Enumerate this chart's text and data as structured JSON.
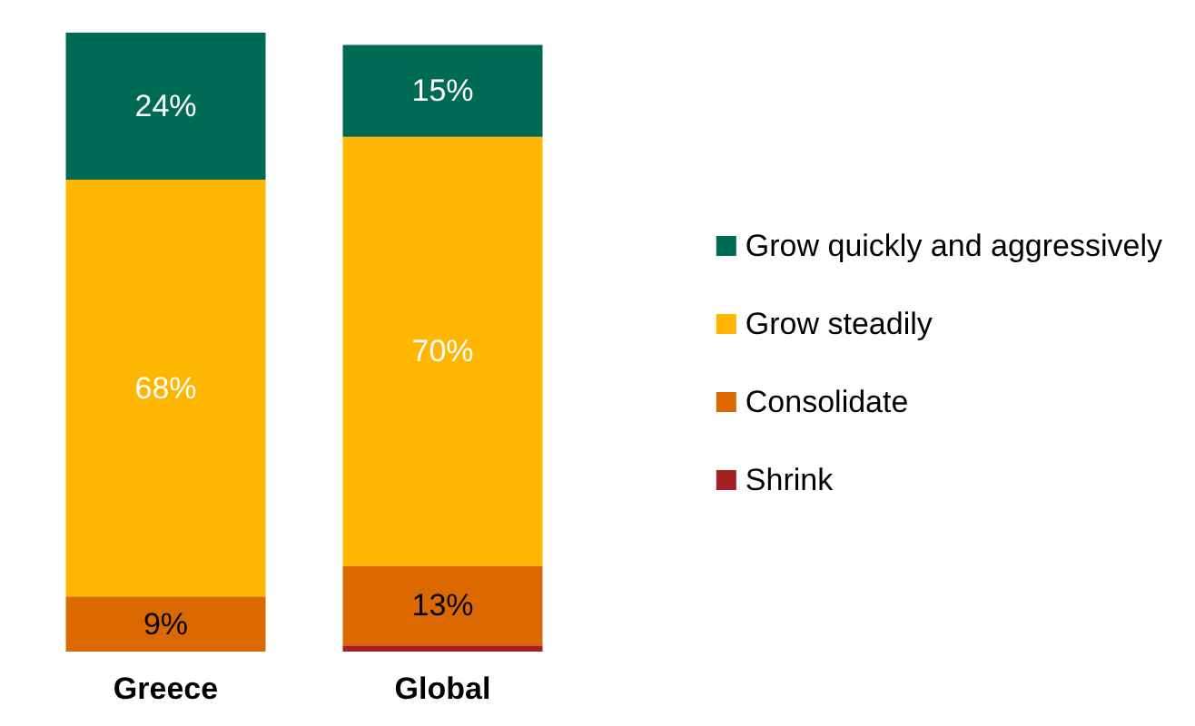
{
  "chart_data": {
    "type": "bar",
    "stacked": true,
    "categories": [
      "Greece",
      "Global"
    ],
    "series": [
      {
        "name": "Shrink",
        "color": "#a32020",
        "values": [
          0,
          1
        ],
        "value_labels": [
          null,
          null
        ]
      },
      {
        "name": "Consolidate",
        "color": "#dc6900",
        "values": [
          9,
          13
        ],
        "value_labels": [
          "9%",
          "13%"
        ]
      },
      {
        "name": "Grow steadily",
        "color": "#ffb600",
        "values": [
          68,
          70
        ],
        "value_labels": [
          "68%",
          "70%"
        ]
      },
      {
        "name": "Grow quickly and aggressively",
        "color": "#006b54",
        "values": [
          24,
          15
        ],
        "value_labels": [
          "24%",
          "15%"
        ]
      }
    ],
    "legend": "right"
  }
}
